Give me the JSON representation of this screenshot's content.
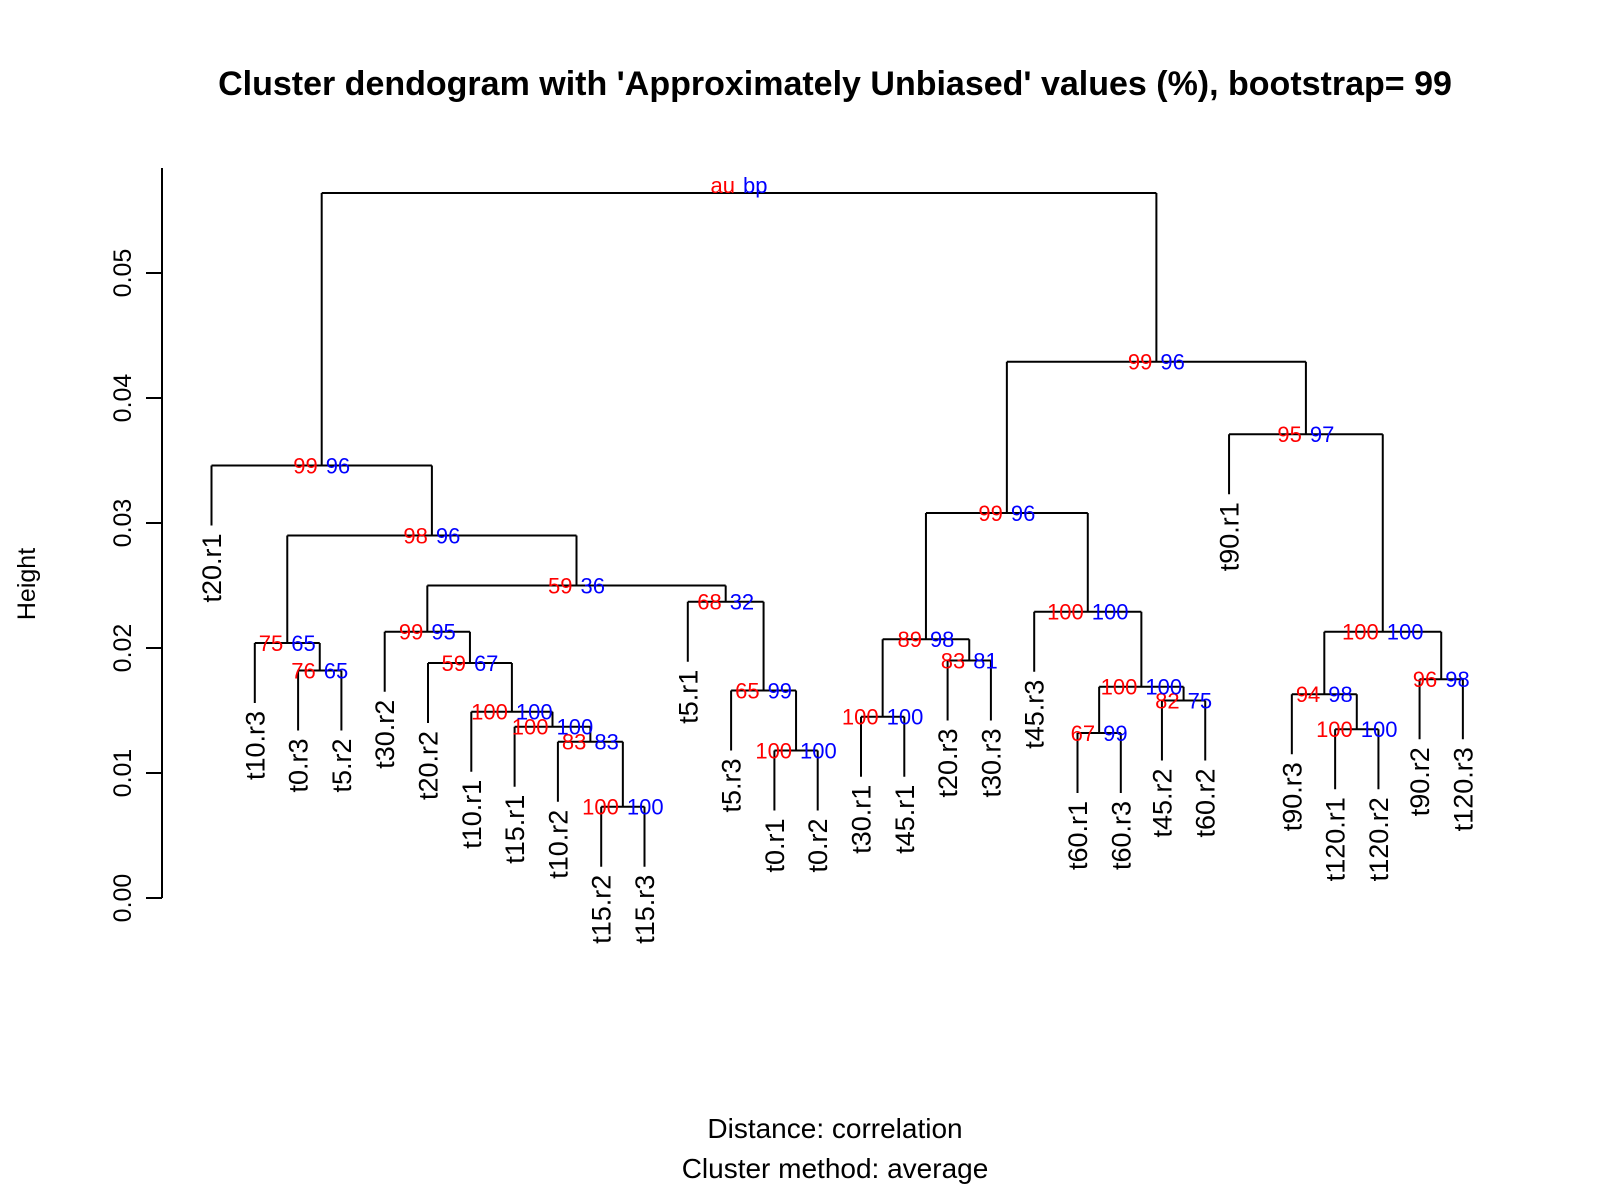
{
  "chart_data": {
    "type": "dendrogram",
    "title": "Cluster dendogram with 'Approximately Unbiased' values (%), bootstrap= 99",
    "ylabel": "Height",
    "ylim": [
      0,
      0.058
    ],
    "yticks": [
      "0.00",
      "0.01",
      "0.02",
      "0.03",
      "0.04",
      "0.05"
    ],
    "subtitle_lines": [
      "Distance:  correlation",
      "Cluster method: average"
    ],
    "legend": {
      "au": "au",
      "bp": "bp"
    },
    "colors": {
      "au": "#ff0000",
      "bp": "#0000ff",
      "line": "#000000"
    },
    "leaves": [
      "t20.r1",
      "t10.r3",
      "t0.r3",
      "t5.r2",
      "t30.r2",
      "t20.r2",
      "t10.r1",
      "t15.r1",
      "t10.r2",
      "t15.r2",
      "t15.r3",
      "t5.r1",
      "t5.r3",
      "t0.r1",
      "t0.r2",
      "t30.r1",
      "t45.r1",
      "t20.r3",
      "t30.r3",
      "t45.r3",
      "t60.r1",
      "t60.r3",
      "t45.r2",
      "t60.r2",
      "t90.r3",
      "t120.r1",
      "t120.r2",
      "t90.r2",
      "t120.r3",
      "t90.r1"
    ],
    "merges": [
      {
        "id": "n1",
        "left": "t15.r2",
        "right": "t15.r3",
        "height": 0.0073,
        "au": "100",
        "bp": "100"
      },
      {
        "id": "n2",
        "left": "t10.r2",
        "right": "n1",
        "height": 0.0125,
        "au": "83",
        "bp": "83"
      },
      {
        "id": "n3",
        "left": "t15.r1",
        "right": "n2",
        "height": 0.0137,
        "au": "100",
        "bp": "100"
      },
      {
        "id": "n4",
        "left": "t10.r1",
        "right": "n3",
        "height": 0.0149,
        "au": "100",
        "bp": "100"
      },
      {
        "id": "n5",
        "left": "t20.r2",
        "right": "n4",
        "height": 0.0188,
        "au": "59",
        "bp": "67"
      },
      {
        "id": "n6",
        "left": "t30.r2",
        "right": "n5",
        "height": 0.0213,
        "au": "99",
        "bp": "95"
      },
      {
        "id": "n7",
        "left": "t0.r1",
        "right": "t0.r2",
        "height": 0.0118,
        "au": "100",
        "bp": "100"
      },
      {
        "id": "n8",
        "left": "t5.r3",
        "right": "n7",
        "height": 0.0166,
        "au": "65",
        "bp": "99"
      },
      {
        "id": "n9",
        "left": "t5.r1",
        "right": "n8",
        "height": 0.0237,
        "au": "68",
        "bp": "32"
      },
      {
        "id": "n10",
        "left": "n6",
        "right": "n9",
        "height": 0.025,
        "au": "59",
        "bp": "36"
      },
      {
        "id": "n11",
        "left": "t0.r3",
        "right": "t5.r2",
        "height": 0.0182,
        "au": "76",
        "bp": "65"
      },
      {
        "id": "n12",
        "left": "t10.r3",
        "right": "n11",
        "height": 0.0204,
        "au": "75",
        "bp": "65"
      },
      {
        "id": "n13",
        "left": "n12",
        "right": "n10",
        "height": 0.029,
        "au": "98",
        "bp": "96"
      },
      {
        "id": "n14",
        "left": "t20.r1",
        "right": "n13",
        "height": 0.0346,
        "au": "99",
        "bp": "96"
      },
      {
        "id": "n15",
        "left": "t30.r1",
        "right": "t45.r1",
        "height": 0.0145,
        "au": "100",
        "bp": "100"
      },
      {
        "id": "n16",
        "left": "t20.r3",
        "right": "t30.r3",
        "height": 0.019,
        "au": "83",
        "bp": "81"
      },
      {
        "id": "n17",
        "left": "n15",
        "right": "n16",
        "height": 0.0207,
        "au": "89",
        "bp": "98"
      },
      {
        "id": "n18",
        "left": "t60.r1",
        "right": "t60.r3",
        "height": 0.0132,
        "au": "67",
        "bp": "99"
      },
      {
        "id": "n19",
        "left": "t45.r2",
        "right": "t60.r2",
        "height": 0.0158,
        "au": "82",
        "bp": "75"
      },
      {
        "id": "n20",
        "left": "n18",
        "right": "n19",
        "height": 0.0169,
        "au": "100",
        "bp": "100"
      },
      {
        "id": "n21",
        "left": "t45.r3",
        "right": "n20",
        "height": 0.0229,
        "au": "100",
        "bp": "100"
      },
      {
        "id": "n22",
        "left": "n17",
        "right": "n21",
        "height": 0.0308,
        "au": "99",
        "bp": "96"
      },
      {
        "id": "n23",
        "left": "t120.r1",
        "right": "t120.r2",
        "height": 0.0135,
        "au": "100",
        "bp": "100"
      },
      {
        "id": "n24",
        "left": "t90.r3",
        "right": "n23",
        "height": 0.0163,
        "au": "94",
        "bp": "98"
      },
      {
        "id": "n25",
        "left": "t90.r2",
        "right": "t120.r3",
        "height": 0.0175,
        "au": "96",
        "bp": "98"
      },
      {
        "id": "n26",
        "left": "n24",
        "right": "n25",
        "height": 0.0213,
        "au": "100",
        "bp": "100"
      },
      {
        "id": "n27",
        "left": "t90.r1",
        "right": "n26",
        "height": 0.0371,
        "au": "95",
        "bp": "97"
      },
      {
        "id": "n28",
        "left": "n22",
        "right": "n27",
        "height": 0.0429,
        "au": "99",
        "bp": "96"
      },
      {
        "id": "n29",
        "left": "n14",
        "right": "n28",
        "height": 0.0564,
        "au": "",
        "bp": ""
      }
    ]
  }
}
